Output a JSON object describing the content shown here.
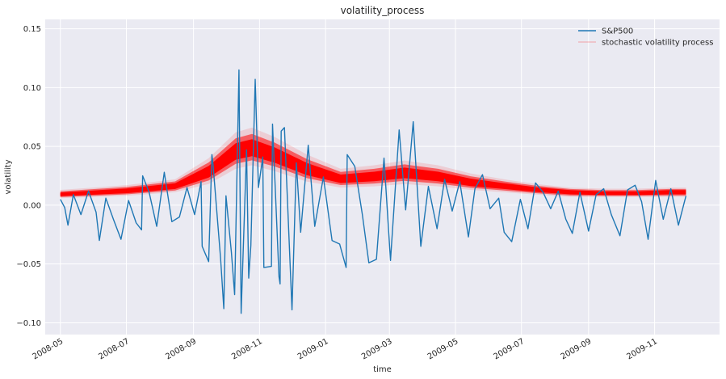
{
  "chart_data": {
    "type": "line",
    "title": "volatility_process",
    "xlabel": "time",
    "ylabel": "volatility",
    "ylim": [
      -0.11,
      0.158
    ],
    "xlim": [
      "2008-04-17",
      "2009-12-31"
    ],
    "grid": true,
    "legend_position": "top-right",
    "y_ticks": [
      -0.1,
      -0.05,
      0.0,
      0.05,
      0.1,
      0.15
    ],
    "y_tick_labels": [
      "−0.10",
      "−0.05",
      "0.00",
      "0.05",
      "0.10",
      "0.15"
    ],
    "x_ticks": [
      "2008-05-01",
      "2008-07-01",
      "2008-09-01",
      "2008-11-01",
      "2009-01-01",
      "2009-03-01",
      "2009-05-01",
      "2009-07-01",
      "2009-09-01",
      "2009-11-01"
    ],
    "x_tick_labels": [
      "2008-05",
      "2008-07",
      "2008-09",
      "2008-11",
      "2009-01",
      "2009-03",
      "2009-05",
      "2009-07",
      "2009-09",
      "2009-11"
    ],
    "series": [
      {
        "name": "S&P500",
        "color": "#1f77b4",
        "points": [
          [
            "2008-05-01",
            0.005
          ],
          [
            "2008-05-05",
            -0.002
          ],
          [
            "2008-05-08",
            -0.017
          ],
          [
            "2008-05-13",
            0.009
          ],
          [
            "2008-05-20",
            -0.008
          ],
          [
            "2008-05-27",
            0.012
          ],
          [
            "2008-06-03",
            -0.006
          ],
          [
            "2008-06-06",
            -0.03
          ],
          [
            "2008-06-12",
            0.006
          ],
          [
            "2008-06-19",
            -0.012
          ],
          [
            "2008-06-26",
            -0.029
          ],
          [
            "2008-07-03",
            0.004
          ],
          [
            "2008-07-10",
            -0.015
          ],
          [
            "2008-07-15",
            -0.021
          ],
          [
            "2008-07-16",
            0.025
          ],
          [
            "2008-07-22",
            0.011
          ],
          [
            "2008-07-29",
            -0.018
          ],
          [
            "2008-08-05",
            0.028
          ],
          [
            "2008-08-12",
            -0.014
          ],
          [
            "2008-08-19",
            -0.01
          ],
          [
            "2008-08-26",
            0.015
          ],
          [
            "2008-09-02",
            -0.008
          ],
          [
            "2008-09-08",
            0.02
          ],
          [
            "2008-09-09",
            -0.035
          ],
          [
            "2008-09-15",
            -0.048
          ],
          [
            "2008-09-18",
            0.043
          ],
          [
            "2008-09-19",
            0.035
          ],
          [
            "2008-09-26",
            -0.045
          ],
          [
            "2008-09-29",
            -0.088
          ],
          [
            "2008-10-01",
            0.008
          ],
          [
            "2008-10-06",
            -0.04
          ],
          [
            "2008-10-09",
            -0.076
          ],
          [
            "2008-10-13",
            0.115
          ],
          [
            "2008-10-15",
            -0.092
          ],
          [
            "2008-10-20",
            0.047
          ],
          [
            "2008-10-22",
            -0.062
          ],
          [
            "2008-10-24",
            -0.034
          ],
          [
            "2008-10-28",
            0.107
          ],
          [
            "2008-10-31",
            0.015
          ],
          [
            "2008-11-04",
            0.041
          ],
          [
            "2008-11-05",
            -0.053
          ],
          [
            "2008-11-12",
            -0.052
          ],
          [
            "2008-11-13",
            0.069
          ],
          [
            "2008-11-19",
            -0.061
          ],
          [
            "2008-11-20",
            -0.067
          ],
          [
            "2008-11-21",
            0.063
          ],
          [
            "2008-11-24",
            0.066
          ],
          [
            "2008-12-01",
            -0.089
          ],
          [
            "2008-12-05",
            0.036
          ],
          [
            "2008-12-09",
            -0.023
          ],
          [
            "2008-12-16",
            0.051
          ],
          [
            "2008-12-22",
            -0.018
          ],
          [
            "2008-12-30",
            0.024
          ],
          [
            "2009-01-07",
            -0.03
          ],
          [
            "2009-01-14",
            -0.033
          ],
          [
            "2009-01-20",
            -0.053
          ],
          [
            "2009-01-21",
            0.043
          ],
          [
            "2009-01-28",
            0.033
          ],
          [
            "2009-02-04",
            -0.008
          ],
          [
            "2009-02-10",
            -0.049
          ],
          [
            "2009-02-17",
            -0.046
          ],
          [
            "2009-02-24",
            0.04
          ],
          [
            "2009-03-02",
            -0.047
          ],
          [
            "2009-03-10",
            0.064
          ],
          [
            "2009-03-16",
            -0.004
          ],
          [
            "2009-03-23",
            0.071
          ],
          [
            "2009-03-30",
            -0.035
          ],
          [
            "2009-04-06",
            0.016
          ],
          [
            "2009-04-14",
            -0.02
          ],
          [
            "2009-04-21",
            0.022
          ],
          [
            "2009-04-28",
            -0.005
          ],
          [
            "2009-05-05",
            0.02
          ],
          [
            "2009-05-13",
            -0.027
          ],
          [
            "2009-05-19",
            0.014
          ],
          [
            "2009-05-26",
            0.026
          ],
          [
            "2009-06-02",
            -0.003
          ],
          [
            "2009-06-10",
            0.006
          ],
          [
            "2009-06-15",
            -0.023
          ],
          [
            "2009-06-22",
            -0.031
          ],
          [
            "2009-06-30",
            0.005
          ],
          [
            "2009-07-07",
            -0.02
          ],
          [
            "2009-07-14",
            0.019
          ],
          [
            "2009-07-21",
            0.011
          ],
          [
            "2009-07-28",
            -0.003
          ],
          [
            "2009-08-04",
            0.012
          ],
          [
            "2009-08-11",
            -0.012
          ],
          [
            "2009-08-17",
            -0.024
          ],
          [
            "2009-08-24",
            0.011
          ],
          [
            "2009-09-01",
            -0.022
          ],
          [
            "2009-09-08",
            0.009
          ],
          [
            "2009-09-15",
            0.014
          ],
          [
            "2009-09-22",
            -0.008
          ],
          [
            "2009-09-30",
            -0.026
          ],
          [
            "2009-10-07",
            0.013
          ],
          [
            "2009-10-14",
            0.017
          ],
          [
            "2009-10-20",
            0.003
          ],
          [
            "2009-10-26",
            -0.029
          ],
          [
            "2009-11-02",
            0.021
          ],
          [
            "2009-11-09",
            -0.012
          ],
          [
            "2009-11-16",
            0.014
          ],
          [
            "2009-11-23",
            -0.017
          ],
          [
            "2009-11-30",
            0.008
          ]
        ]
      },
      {
        "name": "stochastic volatility process",
        "color": "#ff0000",
        "band": {
          "dates": [
            "2008-05-01",
            "2008-07-01",
            "2008-08-15",
            "2008-09-15",
            "2008-10-10",
            "2008-10-25",
            "2008-11-15",
            "2008-12-15",
            "2009-01-15",
            "2009-02-15",
            "2009-03-15",
            "2009-04-15",
            "2009-05-15",
            "2009-06-15",
            "2009-07-15",
            "2009-08-15",
            "2009-09-15",
            "2009-10-15",
            "2009-11-15",
            "2009-11-30"
          ],
          "median": [
            0.009,
            0.012,
            0.016,
            0.028,
            0.045,
            0.048,
            0.042,
            0.03,
            0.022,
            0.024,
            0.027,
            0.024,
            0.019,
            0.016,
            0.013,
            0.011,
            0.01,
            0.01,
            0.011,
            0.011
          ],
          "lower": [
            0.006,
            0.008,
            0.011,
            0.018,
            0.031,
            0.034,
            0.029,
            0.02,
            0.015,
            0.016,
            0.018,
            0.016,
            0.013,
            0.011,
            0.009,
            0.007,
            0.007,
            0.007,
            0.007,
            0.007
          ],
          "upper": [
            0.013,
            0.017,
            0.022,
            0.04,
            0.062,
            0.066,
            0.058,
            0.043,
            0.031,
            0.034,
            0.038,
            0.034,
            0.027,
            0.022,
            0.018,
            0.015,
            0.014,
            0.014,
            0.015,
            0.015
          ]
        }
      }
    ]
  }
}
